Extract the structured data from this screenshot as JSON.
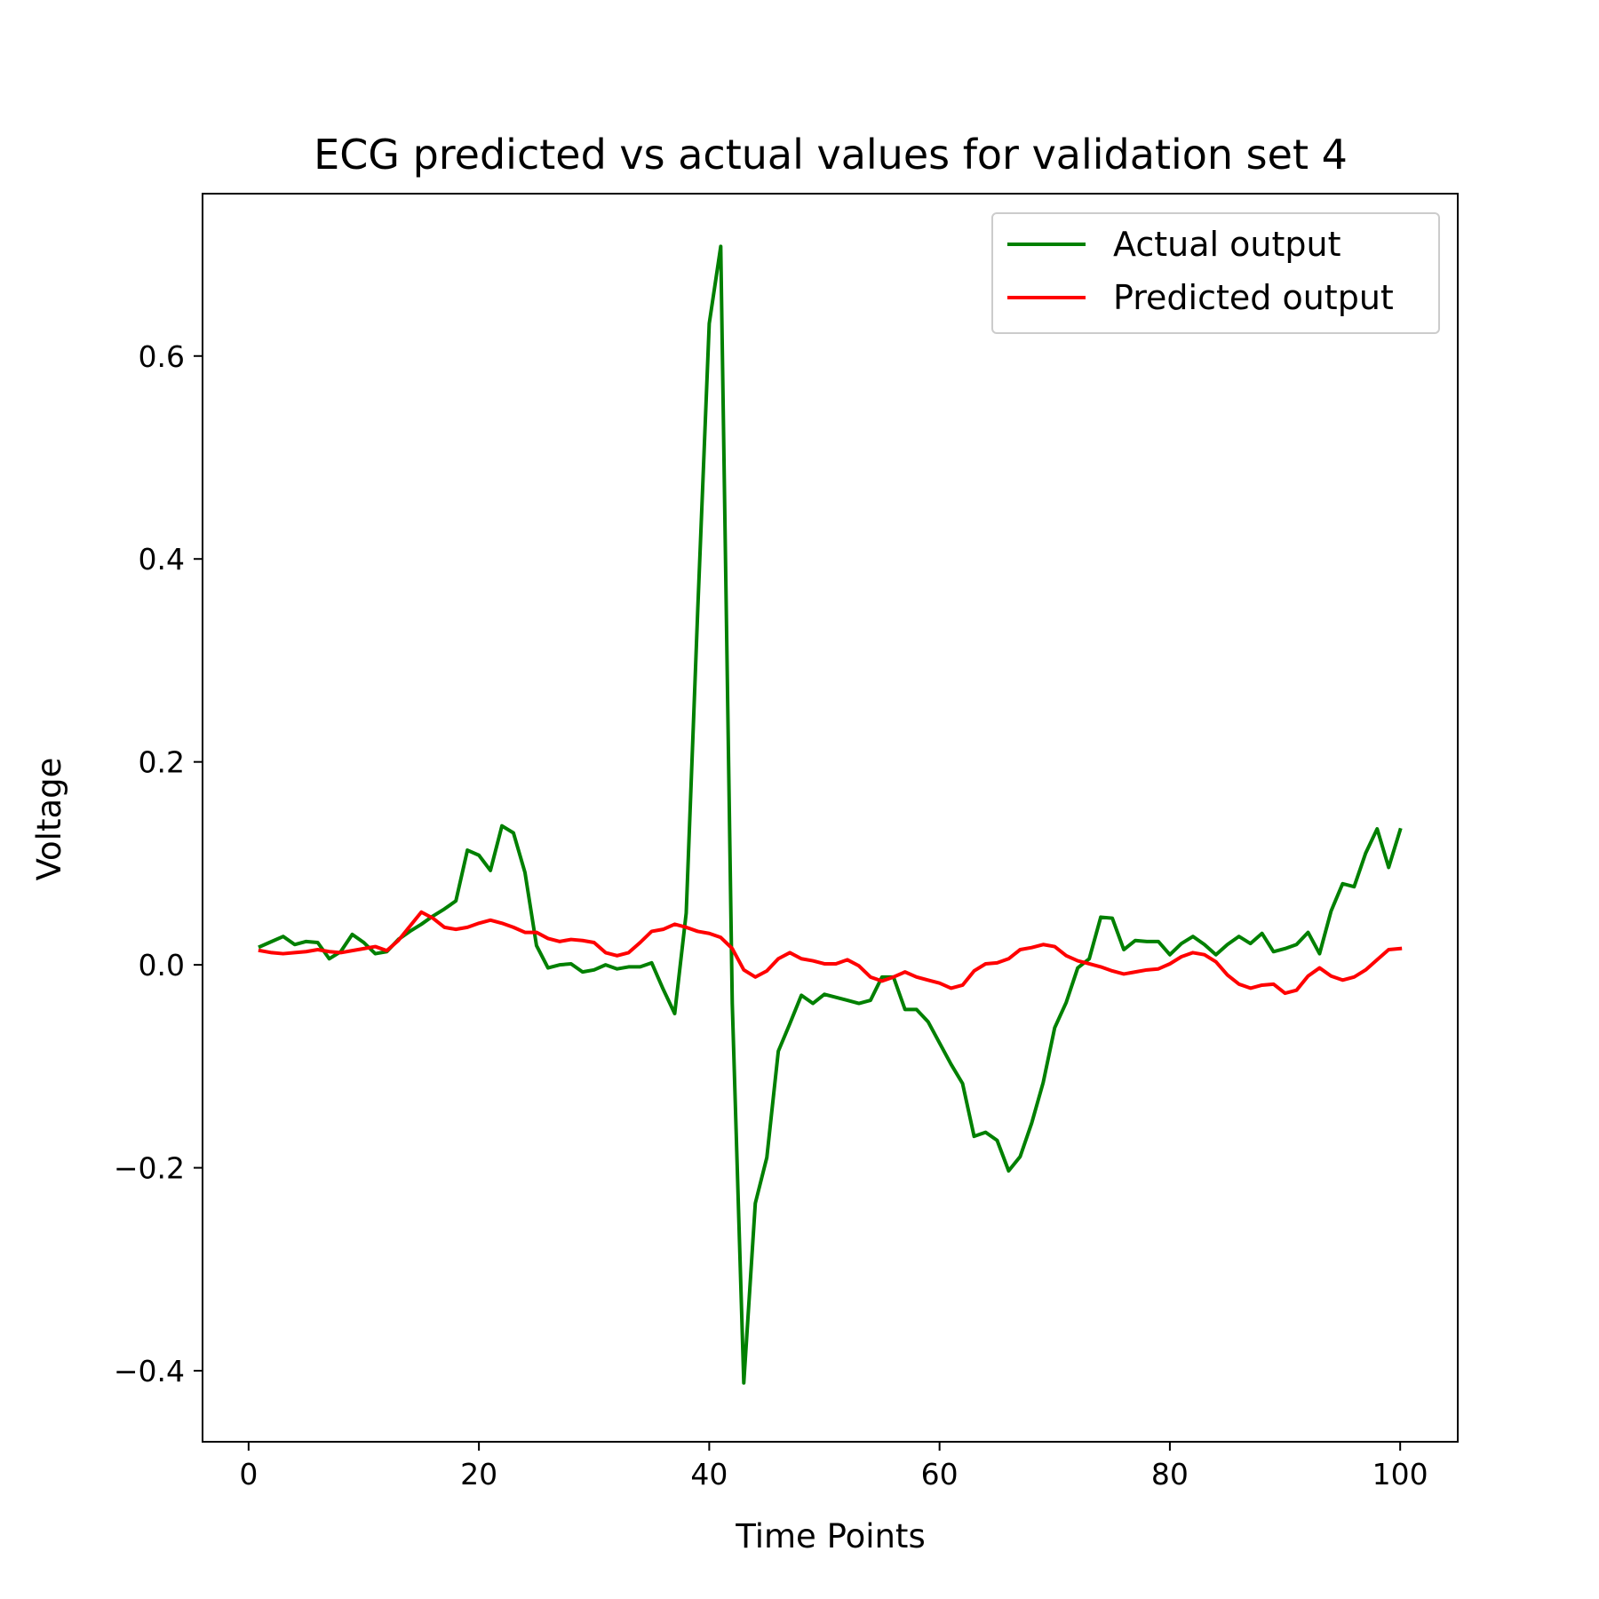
{
  "chart_data": {
    "type": "line",
    "title": "ECG predicted vs actual values for validation set 4",
    "xlabel": "Time Points",
    "ylabel": "Voltage",
    "xlim": [
      -4,
      105
    ],
    "ylim": [
      -0.47,
      0.76
    ],
    "xticks": [
      0,
      20,
      40,
      60,
      80,
      100
    ],
    "xtick_labels": [
      "0",
      "20",
      "40",
      "60",
      "80",
      "100"
    ],
    "yticks": [
      -0.4,
      -0.2,
      0.0,
      0.2,
      0.4,
      0.6
    ],
    "ytick_labels": [
      "−0.4",
      "−0.2",
      "0.0",
      "0.2",
      "0.4",
      "0.6"
    ],
    "grid": false,
    "legend_position": "top-right",
    "x": [
      1,
      2,
      3,
      4,
      5,
      6,
      7,
      8,
      9,
      10,
      11,
      12,
      13,
      14,
      15,
      16,
      17,
      18,
      19,
      20,
      21,
      22,
      23,
      24,
      25,
      26,
      27,
      28,
      29,
      30,
      31,
      32,
      33,
      34,
      35,
      36,
      37,
      38,
      39,
      40,
      41,
      42,
      43,
      44,
      45,
      46,
      47,
      48,
      49,
      50,
      51,
      52,
      53,
      54,
      55,
      56,
      57,
      58,
      59,
      60,
      61,
      62,
      63,
      64,
      65,
      66,
      67,
      68,
      69,
      70,
      71,
      72,
      73,
      74,
      75,
      76,
      77,
      78,
      79,
      80,
      81,
      82,
      83,
      84,
      85,
      86,
      87,
      88,
      89,
      90,
      91,
      92,
      93,
      94,
      95,
      96,
      97,
      98,
      99,
      100
    ],
    "series": [
      {
        "name": "Actual output",
        "color": "#008000",
        "values": [
          0.018,
          0.023,
          0.028,
          0.02,
          0.023,
          0.022,
          0.006,
          0.013,
          0.03,
          0.022,
          0.011,
          0.013,
          0.025,
          0.033,
          0.04,
          0.048,
          0.055,
          0.063,
          0.113,
          0.108,
          0.093,
          0.137,
          0.13,
          0.091,
          0.019,
          -0.003,
          0.0,
          0.001,
          -0.007,
          -0.005,
          0.0,
          -0.004,
          -0.002,
          -0.002,
          0.002,
          -0.024,
          -0.048,
          0.051,
          0.349,
          0.632,
          0.708,
          -0.038,
          -0.412,
          -0.235,
          -0.19,
          -0.085,
          -0.058,
          -0.03,
          -0.038,
          -0.029,
          -0.032,
          -0.035,
          -0.038,
          -0.035,
          -0.012,
          -0.012,
          -0.044,
          -0.044,
          -0.056,
          -0.077,
          -0.098,
          -0.117,
          -0.169,
          -0.165,
          -0.173,
          -0.203,
          -0.189,
          -0.156,
          -0.116,
          -0.062,
          -0.037,
          -0.003,
          0.006,
          0.047,
          0.046,
          0.015,
          0.024,
          0.023,
          0.023,
          0.01,
          0.021,
          0.028,
          0.02,
          0.01,
          0.02,
          0.028,
          0.021,
          0.031,
          0.013,
          0.016,
          0.02,
          0.032,
          0.011,
          0.053,
          0.08,
          0.077,
          0.11,
          0.134,
          0.096,
          0.133
        ]
      },
      {
        "name": "Predicted output",
        "color": "#ff0000",
        "values": [
          0.014,
          0.012,
          0.011,
          0.012,
          0.013,
          0.015,
          0.013,
          0.012,
          0.014,
          0.016,
          0.018,
          0.014,
          0.024,
          0.038,
          0.052,
          0.046,
          0.037,
          0.035,
          0.037,
          0.041,
          0.044,
          0.041,
          0.037,
          0.032,
          0.032,
          0.026,
          0.023,
          0.025,
          0.024,
          0.022,
          0.012,
          0.009,
          0.012,
          0.022,
          0.033,
          0.035,
          0.04,
          0.037,
          0.033,
          0.031,
          0.027,
          0.016,
          -0.005,
          -0.012,
          -0.006,
          0.006,
          0.012,
          0.006,
          0.004,
          0.001,
          0.001,
          0.005,
          -0.001,
          -0.012,
          -0.016,
          -0.012,
          -0.007,
          -0.012,
          -0.015,
          -0.018,
          -0.023,
          -0.02,
          -0.006,
          0.001,
          0.002,
          0.006,
          0.015,
          0.017,
          0.02,
          0.018,
          0.009,
          0.004,
          0.001,
          -0.002,
          -0.006,
          -0.009,
          -0.007,
          -0.005,
          -0.004,
          0.001,
          0.008,
          0.012,
          0.01,
          0.003,
          -0.01,
          -0.019,
          -0.023,
          -0.02,
          -0.019,
          -0.028,
          -0.025,
          -0.011,
          -0.003,
          -0.011,
          -0.015,
          -0.012,
          -0.005,
          0.005,
          0.015,
          0.016
        ]
      }
    ]
  }
}
